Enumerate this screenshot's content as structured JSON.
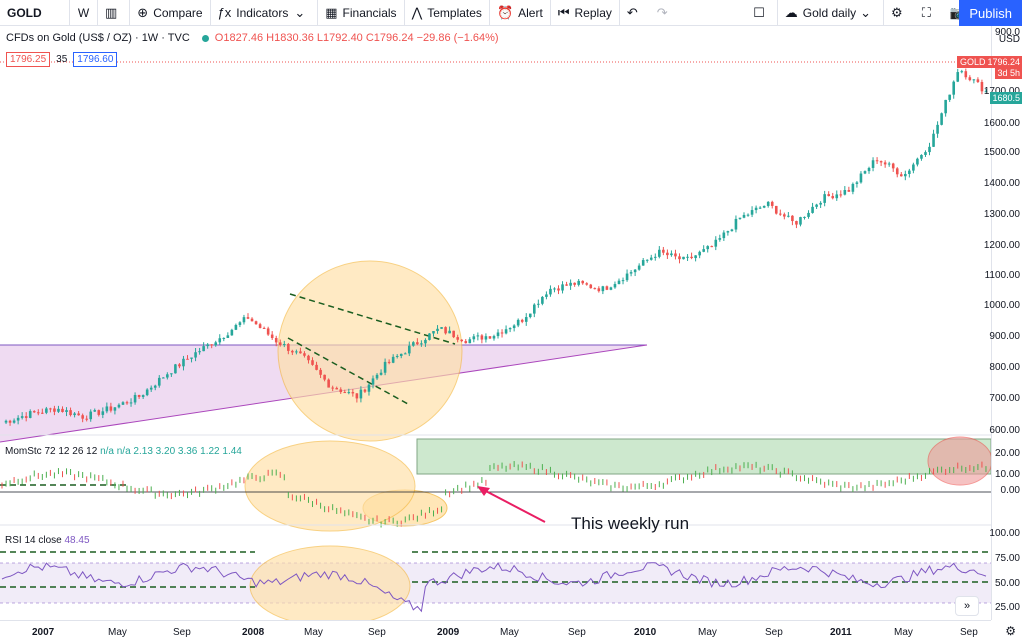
{
  "toolbar": {
    "symbol": "GOLD",
    "interval": "W",
    "compare": "Compare",
    "indicators": "Indicators",
    "financials": "Financials",
    "templates": "Templates",
    "alert": "Alert",
    "replay": "Replay",
    "layout_name": "Gold daily",
    "publish": "Publish"
  },
  "legend": {
    "title": "CFDs on Gold (US$ / OZ) · 1W · TVC",
    "ohlc": "O1827.46 H1830.36 L1792.40 C1796.24 −29.86 (−1.64%)",
    "price_left": "1796.25",
    "spread": "35",
    "price_right": "1796.60"
  },
  "price_axis": {
    "ticks": [
      "1800.00",
      "1700.00",
      "1600.00",
      "1500.00",
      "1400.00",
      "1300.00",
      "1200.00",
      "1100.00",
      "1000.00",
      "900.00",
      "800.00",
      "700.00",
      "600.00"
    ],
    "top_tick": "900.0",
    "currency": "USD",
    "badge_price": "1796.24",
    "badge_gold": "GOLD",
    "badge_countdown": "3d 5h",
    "badge_green": "1680.5",
    "mom_ticks": [
      "20.00",
      "10.00",
      "0.00"
    ],
    "rsi_ticks": [
      "100.00",
      "75.00",
      "50.00",
      "25.00"
    ]
  },
  "time_axis": {
    "ticks": [
      "2007",
      "May",
      "Sep",
      "2008",
      "May",
      "Sep",
      "2009",
      "May",
      "Sep",
      "2010",
      "May",
      "Sep",
      "2011",
      "May",
      "Sep"
    ]
  },
  "indicators": {
    "mom_name": "MomStc 72 12 26 12",
    "mom_values": "n/a  n/a  2.13  3.20  3.36  1.22  1.44",
    "rsi_name": "RSI 14 close",
    "rsi_value": "48.45"
  },
  "annotation": "This weekly run",
  "chart_data": {
    "type": "candlestick",
    "series": [
      {
        "name": "GOLD",
        "start": "2006-12",
        "end": "2011-09",
        "approx_closes": [
          630,
          660,
          680,
          650,
          680,
          720,
          800,
          870,
          930,
          1000,
          920,
          860,
          760,
          720,
          830,
          900,
          960,
          920,
          940,
          990,
          1100,
          1120,
          1100,
          1160,
          1230,
          1200,
          1250,
          1350,
          1400,
          1330,
          1420,
          1450,
          1560,
          1500,
          1620,
          1880,
          1796
        ]
      }
    ],
    "colors": {
      "up": "#26a69a",
      "down": "#ef5350"
    }
  }
}
